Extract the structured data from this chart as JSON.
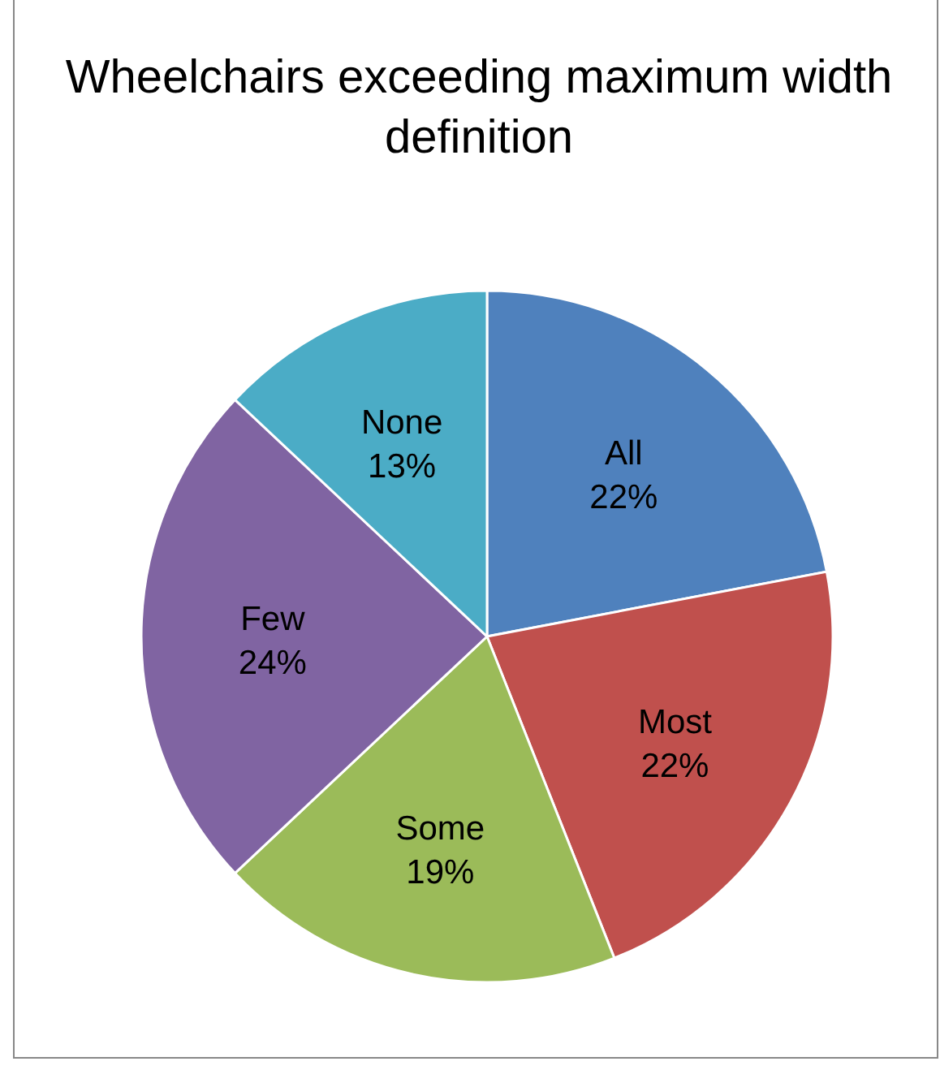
{
  "chart_data": {
    "type": "pie",
    "title": "Wheelchairs exceeding maximum width definition",
    "categories": [
      "All",
      "Most",
      "Some",
      "Few",
      "None"
    ],
    "values": [
      22,
      22,
      19,
      24,
      13
    ],
    "value_labels": [
      "22%",
      "22%",
      "19%",
      "24%",
      "13%"
    ],
    "colors": [
      "#4f81bd",
      "#c0504d",
      "#9bbb59",
      "#8064a2",
      "#4bacc6"
    ],
    "legend": false
  }
}
